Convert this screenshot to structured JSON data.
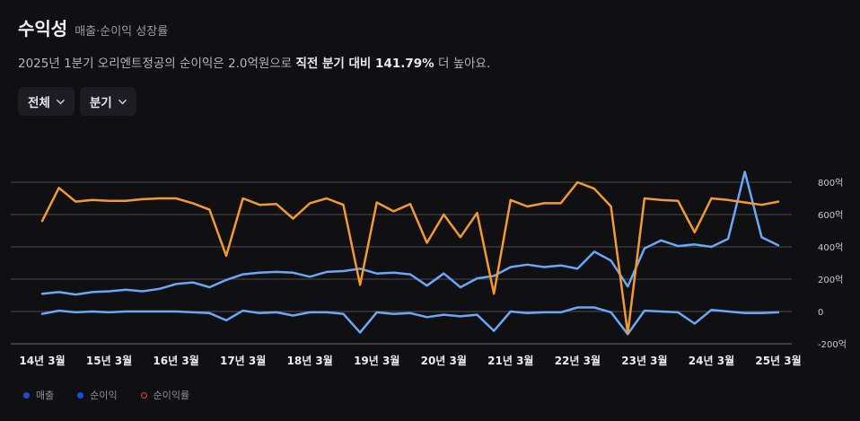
{
  "header": {
    "title": "수익성",
    "subtitle": "매출·순이익 성장률",
    "desc_prefix": "2025년 1분기 오리엔트정공의 순이익은 2.0억원으로 ",
    "desc_highlight": "직전 분기 대비 141.79%",
    "desc_suffix": " 더 높아요."
  },
  "controls": {
    "range_label": "전체",
    "period_label": "분기"
  },
  "legend": {
    "items": [
      {
        "label": "매출",
        "color": "#1c4fd6"
      },
      {
        "label": "순이익",
        "color": "#1c4fd6"
      },
      {
        "label": "순이익률",
        "color": "#e0452b"
      }
    ]
  },
  "chart_data": {
    "type": "line",
    "x_tick_labels": [
      "14년 3월",
      "15년 3월",
      "16년 3월",
      "17년 3월",
      "18년 3월",
      "19년 3월",
      "20년 3월",
      "21년 3월",
      "22년 3월",
      "23년 3월",
      "24년 3월",
      "25년 3월"
    ],
    "y_tick_labels": [
      "800억",
      "600억",
      "400억",
      "200억",
      "0",
      "-200억"
    ],
    "y_ticks": [
      800,
      600,
      400,
      200,
      0,
      -200
    ],
    "ylim": [
      -200,
      800
    ],
    "series": [
      {
        "name": "매출",
        "color": "#6aa7f8",
        "values": [
          110,
          120,
          105,
          120,
          125,
          135,
          125,
          140,
          170,
          180,
          150,
          195,
          230,
          240,
          245,
          240,
          215,
          245,
          250,
          265,
          235,
          240,
          230,
          160,
          235,
          150,
          205,
          220,
          275,
          290,
          275,
          285,
          265,
          370,
          315,
          155,
          390,
          440,
          405,
          415,
          400,
          450,
          865,
          460,
          410
        ]
      },
      {
        "name": "순이익",
        "color": "#6aa7f8",
        "values": [
          -15,
          5,
          -5,
          0,
          -5,
          0,
          0,
          0,
          0,
          -5,
          -10,
          -55,
          5,
          -10,
          -5,
          -25,
          -5,
          -5,
          -15,
          -130,
          -5,
          -15,
          -10,
          -35,
          -20,
          -30,
          -20,
          -120,
          0,
          -10,
          -5,
          -5,
          25,
          25,
          -5,
          -140,
          5,
          0,
          -5,
          -75,
          10,
          0,
          -10,
          -10,
          -5
        ]
      },
      {
        "name": "순이익률",
        "color": "#f29a2e",
        "values": [
          560,
          765,
          680,
          690,
          685,
          685,
          695,
          700,
          700,
          670,
          630,
          345,
          700,
          660,
          665,
          575,
          670,
          700,
          660,
          165,
          675,
          620,
          665,
          425,
          600,
          460,
          610,
          110,
          690,
          650,
          670,
          670,
          800,
          760,
          650,
          -135,
          700,
          690,
          685,
          490,
          700,
          690,
          675,
          660,
          680
        ]
      }
    ],
    "grid": true,
    "legend_position": "bottom-left"
  }
}
